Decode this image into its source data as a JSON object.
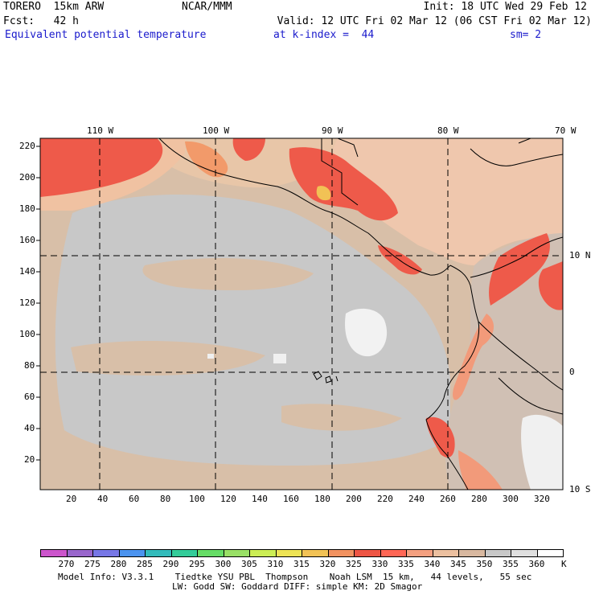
{
  "header": {
    "model": "TORERO  15km ARW",
    "org": "NCAR/MMM",
    "init": "Init: 18 UTC Wed 29 Feb 12",
    "fcst": "Fcst:   42 h",
    "valid": "Valid: 12 UTC Fri 02 Mar 12 (06 CST Fri 02 Mar 12)",
    "field": "Equivalent potential temperature",
    "level": "at k-index =  44",
    "smooth": "sm= 2"
  },
  "map": {
    "lon_labels": [
      "110 W",
      "100 W",
      "90 W",
      "80 W",
      "70 W"
    ],
    "lat_labels": [
      "10 N",
      "0",
      "10 S"
    ],
    "y_ticks": [
      "220",
      "200",
      "180",
      "160",
      "140",
      "120",
      "100",
      "80",
      "60",
      "40",
      "20"
    ],
    "x_ticks": [
      "20",
      "40",
      "60",
      "80",
      "100",
      "120",
      "140",
      "160",
      "180",
      "200",
      "220",
      "240",
      "260",
      "280",
      "300",
      "320"
    ]
  },
  "colorbar": {
    "labels": [
      "270",
      "275",
      "280",
      "285",
      "290",
      "295",
      "300",
      "305",
      "310",
      "315",
      "320",
      "325",
      "330",
      "335",
      "340",
      "345",
      "350",
      "355",
      "360"
    ],
    "unit": "K",
    "colors": [
      "#cc55cc",
      "#9966cc",
      "#7777e6",
      "#4c94ef",
      "#33bbbb",
      "#33cc99",
      "#66dd66",
      "#99e066",
      "#ccee55",
      "#eee455",
      "#f2c255",
      "#f29260",
      "#ee5544",
      "#ff6655",
      "#f4a080",
      "#ecc0a0",
      "#d8b8a0",
      "#c8c8c8",
      "#e0e0e0",
      "#ffffff"
    ]
  },
  "footer": {
    "line1": "Model Info: V3.3.1    Tiedtke YSU PBL  Thompson    Noah LSM  15 km,   44 levels,   55 sec",
    "line2": "LW: Godd SW: Goddard DIFF: simple KM: 2D Smagor"
  }
}
